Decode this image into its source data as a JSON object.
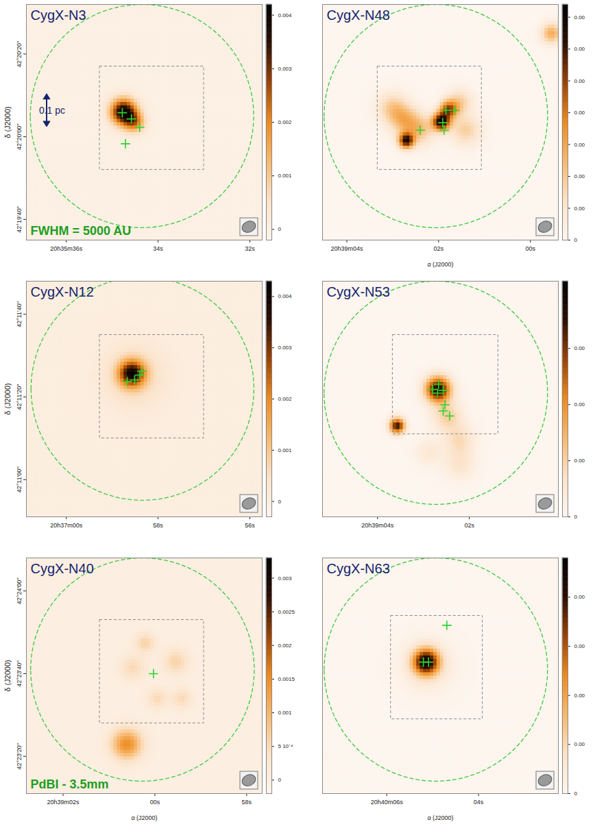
{
  "chart_data": [
    {
      "type": "map",
      "name": "CygX-N3",
      "marker": "plus",
      "xlim": [
        36.87,
        31.73
      ],
      "xticks": [
        {
          "value": 36,
          "label": "20h35m36s"
        },
        {
          "value": 34,
          "label": "34s"
        },
        {
          "value": 32,
          "label": "32s"
        }
      ],
      "ylim": [
        152375,
        152432
      ],
      "yticks": [
        {
          "value": 152420,
          "label": "42°20'20''"
        },
        {
          "value": 152400,
          "label": "42°20'00''"
        },
        {
          "value": 152380,
          "label": "42°19'40''"
        }
      ],
      "ylabel": "δ (J2000)",
      "colorbar": {
        "lim": [
          -0.0002,
          0.0042
        ],
        "ticks": [
          0,
          0.001,
          0.002,
          0.003,
          0.004
        ]
      },
      "sources": [
        {
          "ra": 34.74,
          "dec": 152406,
          "peak": 0.0041,
          "fwhm": 5
        },
        {
          "ra": 34.51,
          "dec": 152403.5,
          "peak": 0.002,
          "fwhm": 4
        }
      ],
      "crosses": [
        {
          "ra": 34.78,
          "dec": 152405.8
        },
        {
          "ra": 34.58,
          "dec": 152404.3
        },
        {
          "ra": 34.4,
          "dec": 152402.3
        },
        {
          "ra": 34.71,
          "dec": 152398.3
        }
      ],
      "circle": {
        "ra": 34.35,
        "dec": 152405,
        "radius": 27
      },
      "box": {
        "ra": [
          35.27,
          33.0
        ],
        "dec": [
          152392,
          152417
        ]
      },
      "beam": [
        3.4,
        2.6
      ],
      "scalebar": {
        "label": "0.1 pc",
        "length": 8
      },
      "annotations": [
        {
          "text": "FWHM = 5000 AU",
          "color": "#1e9e1e"
        }
      ]
    },
    {
      "type": "map",
      "name": "CygX-N48",
      "marker": "plus",
      "tick_labels": "x",
      "xlim": [
        4.53,
        -0.61
      ],
      "xticks": [
        {
          "value": 4,
          "label": "20h39m04s"
        },
        {
          "value": 2,
          "label": "02s"
        },
        {
          "value": 0,
          "label": "00s"
        }
      ],
      "ylim": [
        152535,
        152592
      ],
      "xlabel": "α (J2000)",
      "colorbar": {
        "lim": [
          0,
          0.0037
        ],
        "ticks": [
          0,
          {
            "value": 0.0005,
            "label": "0.00"
          },
          {
            "value": 0.001,
            "label": "0.00"
          },
          {
            "value": 0.0015,
            "label": "0.00"
          },
          {
            "value": 0.002,
            "label": "0.00"
          },
          {
            "value": 0.0025,
            "label": "0.00"
          },
          {
            "value": 0.003,
            "label": "0.00"
          },
          {
            "value": 0.0035,
            "label": "0.00"
          }
        ]
      },
      "sources": [
        {
          "ra": 1.93,
          "dec": 152563.6,
          "peak": 0.0034,
          "fwhm": 3.5
        },
        {
          "ra": 1.77,
          "dec": 152566.6,
          "peak": 0.0022,
          "fwhm": 3.5
        },
        {
          "ra": 2.69,
          "dec": 152559,
          "peak": 0.003,
          "fwhm": 3
        },
        {
          "ra": 2.73,
          "dec": 152564,
          "peak": 0.0011,
          "fwhm": 6
        },
        {
          "ra": 2.4,
          "dec": 152561.6,
          "peak": 0.001,
          "fwhm": 6
        },
        {
          "ra": 3.0,
          "dec": 152567,
          "peak": 0.0009,
          "fwhm": 6
        },
        {
          "ra": 1.4,
          "dec": 152561.6,
          "peak": 0.0009,
          "fwhm": 6
        },
        {
          "ra": 1.53,
          "dec": 152568.3,
          "peak": 0.0009,
          "fwhm": 5
        },
        {
          "ra": -0.47,
          "dec": 152585,
          "peak": 0.0014,
          "fwhm": 4
        }
      ],
      "crosses": [
        {
          "ra": 1.84,
          "dec": 152566.4
        },
        {
          "ra": 1.65,
          "dec": 152566.4
        },
        {
          "ra": 1.91,
          "dec": 152563.4
        },
        {
          "ra": 1.88,
          "dec": 152561.6
        },
        {
          "ra": 2.4,
          "dec": 152561.6
        }
      ],
      "circle": {
        "ra": 2.06,
        "dec": 152565,
        "radius": 27
      },
      "box": {
        "ra": [
          3.33,
          1.06
        ],
        "dec": [
          152552,
          152577
        ]
      },
      "beam": [
        3.4,
        2.6
      ]
    },
    {
      "type": "map",
      "name": "CygX-N12",
      "marker": "plus",
      "xlim": [
        60.87,
        55.73
      ],
      "xticks": [
        {
          "value": 60,
          "label": "20h37m00s"
        },
        {
          "value": 58,
          "label": "58s"
        },
        {
          "value": 56,
          "label": "56s"
        }
      ],
      "ylim": [
        151851,
        151908
      ],
      "yticks": [
        {
          "value": 151900,
          "label": "42°11'40''"
        },
        {
          "value": 151880,
          "label": "42°11'20''"
        },
        {
          "value": 151860,
          "label": "42°11'00''"
        }
      ],
      "ylabel": "δ (J2000)",
      "colorbar": {
        "lim": [
          -0.0003,
          0.0043
        ],
        "ticks": [
          0,
          0.001,
          0.002,
          0.003,
          0.004
        ]
      },
      "sources": [
        {
          "ra": 58.56,
          "dec": 151885.6,
          "peak": 0.0036,
          "fwhm": 5
        },
        {
          "ra": 58.5,
          "dec": 151885,
          "peak": 0.0007,
          "fwhm": 12
        }
      ],
      "crosses": [
        {
          "ra": 58.67,
          "dec": 151883.7
        },
        {
          "ra": 58.51,
          "dec": 151884.1
        },
        {
          "ra": 58.4,
          "dec": 151885.3
        },
        {
          "ra": 58.35,
          "dec": 151886.2
        }
      ],
      "circle": {
        "ra": 58.34,
        "dec": 151882,
        "radius": 27
      },
      "box": {
        "ra": [
          59.27,
          57.0
        ],
        "dec": [
          151870,
          151895
        ]
      },
      "beam": [
        3.4,
        2.6
      ]
    },
    {
      "type": "map",
      "name": "CygX-N53",
      "marker": "plus",
      "tick_labels": "x",
      "xlim": [
        5.2,
        0.06
      ],
      "xticks": [
        {
          "value": 4,
          "label": "20h39m04s"
        },
        {
          "value": 2,
          "label": "02s"
        }
      ],
      "ylim": [
        152463,
        152520
      ],
      "colorbar": {
        "lim": [
          0,
          0.0042
        ],
        "ticks": [
          0,
          {
            "value": 0.001,
            "label": "0.00"
          },
          {
            "value": 0.002,
            "label": "0.00"
          },
          {
            "value": 0.003,
            "label": "0.00"
          }
        ]
      },
      "sources": [
        {
          "ra": 2.67,
          "dec": 152493.8,
          "peak": 0.0038,
          "fwhm": 5
        },
        {
          "ra": 3.56,
          "dec": 152485,
          "peak": 0.0035,
          "fwhm": 3
        },
        {
          "ra": 2.47,
          "dec": 152487.4,
          "peak": 0.001,
          "fwhm": 6
        },
        {
          "ra": 2.2,
          "dec": 152481.5,
          "peak": 0.0008,
          "fwhm": 6
        },
        {
          "ra": 2.2,
          "dec": 152475.6,
          "peak": 0.0006,
          "fwhm": 6
        },
        {
          "ra": 2.87,
          "dec": 152478.5,
          "peak": 0.0005,
          "fwhm": 5
        }
      ],
      "crosses": [
        {
          "ra": 2.8,
          "dec": 152493.8
        },
        {
          "ra": 2.67,
          "dec": 152495.1
        },
        {
          "ra": 2.57,
          "dec": 152493.6
        },
        {
          "ra": 2.69,
          "dec": 152492.9
        },
        {
          "ra": 2.53,
          "dec": 152490.1
        },
        {
          "ra": 2.57,
          "dec": 152488.6
        },
        {
          "ra": 2.43,
          "dec": 152487.4
        }
      ],
      "circle": {
        "ra": 2.73,
        "dec": 152493,
        "radius": 27
      },
      "box": {
        "ra": [
          3.67,
          1.37
        ],
        "dec": [
          152483,
          152507
        ]
      },
      "beam": [
        3.4,
        2.6
      ]
    },
    {
      "type": "map",
      "name": "CygX-N40",
      "marker": "plus",
      "xlim": [
        62.8,
        57.66
      ],
      "xticks": [
        {
          "value": 62,
          "label": "20h39m02s"
        },
        {
          "value": 60,
          "label": "00s"
        },
        {
          "value": 58,
          "label": "58s"
        }
      ],
      "ylim": [
        152591,
        152648
      ],
      "yticks": [
        {
          "value": 152640,
          "label": "42°24'00''"
        },
        {
          "value": 152620,
          "label": "42°23'40''"
        },
        {
          "value": 152600,
          "label": "42°23'20''"
        }
      ],
      "xlabel": "α (J2000)",
      "ylabel": "δ (J2000)",
      "colorbar": {
        "lim": [
          -0.0002,
          0.0033
        ],
        "ticks": [
          0,
          {
            "value": 0.0005,
            "label": "5 10⁻⁴"
          },
          0.001,
          0.0015,
          0.002,
          0.0025,
          0.003
        ]
      },
      "sources": [
        {
          "ra": 60.6,
          "dec": 152602.9,
          "peak": 0.0015,
          "fwhm": 6
        },
        {
          "ra": 60.2,
          "dec": 152627.4,
          "peak": 0.0006,
          "fwhm": 4
        },
        {
          "ra": 59.53,
          "dec": 152622.9,
          "peak": 0.0006,
          "fwhm": 5
        },
        {
          "ra": 60.47,
          "dec": 152621.4,
          "peak": 0.0005,
          "fwhm": 5
        },
        {
          "ra": 59.4,
          "dec": 152614,
          "peak": 0.0005,
          "fwhm": 4
        },
        {
          "ra": 59.93,
          "dec": 152614,
          "peak": 0.0005,
          "fwhm": 4
        }
      ],
      "crosses": [
        {
          "ra": 60.03,
          "dec": 152620
        }
      ],
      "circle": {
        "ra": 60.27,
        "dec": 152621,
        "radius": 27
      },
      "box": {
        "ra": [
          61.2,
          58.93
        ],
        "dec": [
          152608,
          152633
        ]
      },
      "beam": [
        3.4,
        2.6
      ],
      "annotations": [
        {
          "text": "PdBI - 3.5mm",
          "color": "#1e9e1e"
        }
      ]
    },
    {
      "type": "map",
      "name": "CygX-N63",
      "marker": "plus",
      "tick_labels": "x",
      "xlim": [
        7.4,
        2.26
      ],
      "xticks": [
        {
          "value": 6,
          "label": "20h40m06s"
        },
        {
          "value": 4,
          "label": "04s"
        }
      ],
      "ylim": [
        152343,
        152400
      ],
      "xlabel": "α (J2000)",
      "colorbar": {
        "lim": [
          0,
          0.0048
        ],
        "ticks": [
          0,
          {
            "value": 0.001,
            "label": "0.00"
          },
          {
            "value": 0.002,
            "label": "0.00"
          },
          {
            "value": 0.003,
            "label": "0.00"
          },
          {
            "value": 0.004,
            "label": "0.00"
          }
        ]
      },
      "sources": [
        {
          "ra": 5.13,
          "dec": 152374.8,
          "peak": 0.0042,
          "fwhm": 5
        },
        {
          "ra": 5.1,
          "dec": 152374,
          "peak": 0.0007,
          "fwhm": 10
        }
      ],
      "crosses": [
        {
          "ra": 5.2,
          "dec": 152374.8
        },
        {
          "ra": 5.09,
          "dec": 152374.8
        },
        {
          "ra": 4.69,
          "dec": 152383.7
        }
      ],
      "circle": {
        "ra": 4.93,
        "dec": 152373,
        "radius": 27
      },
      "box": {
        "ra": [
          5.91,
          3.91
        ],
        "dec": [
          152361,
          152386
        ]
      },
      "beam": [
        3.4,
        2.6
      ]
    }
  ]
}
